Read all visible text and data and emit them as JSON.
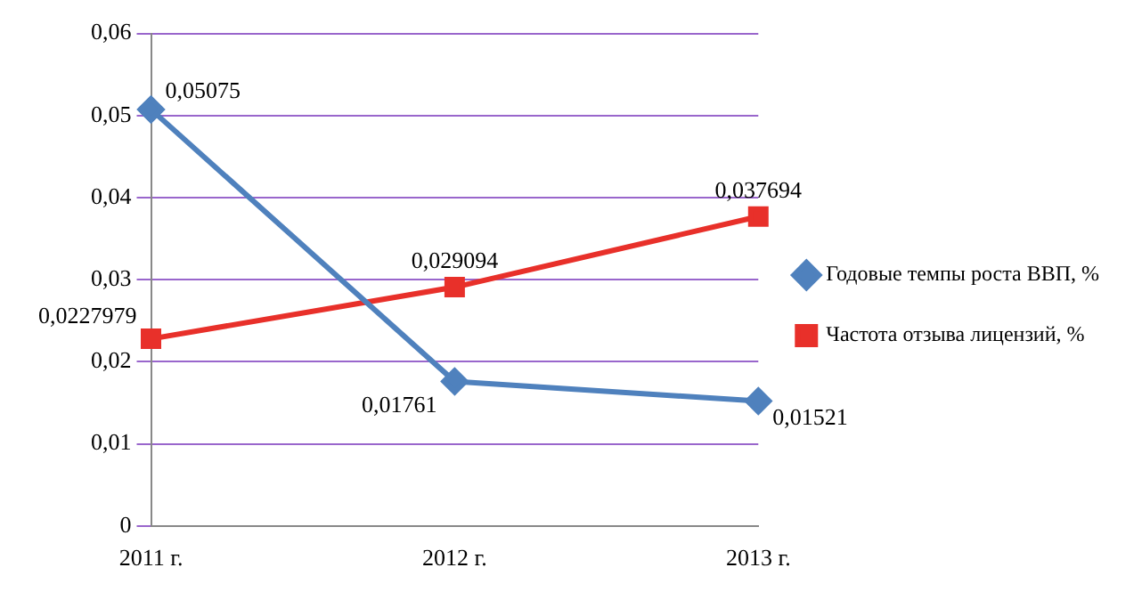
{
  "chart_data": {
    "type": "line",
    "categories": [
      "2011 г.",
      "2012 г.",
      "2013 г."
    ],
    "series": [
      {
        "name": "Годовые темпы роста ВВП, %",
        "color": "#4f81bd",
        "marker": "diamond",
        "values": [
          0.05075,
          0.01761,
          0.01521
        ],
        "value_labels": [
          "0,05075",
          "0,01761",
          "0,01521"
        ]
      },
      {
        "name": "Частота отзыва лицензий, %",
        "color": "#e8302a",
        "marker": "square",
        "values": [
          0.0227979,
          0.029094,
          0.037694
        ],
        "value_labels": [
          "0,0227979",
          "0,029094",
          "0,037694"
        ]
      }
    ],
    "ylim": [
      0,
      0.06
    ],
    "yticks": [
      0,
      {
        "value": 0.01,
        "label": "0,01"
      },
      {
        "value": 0.02,
        "label": "0,02"
      },
      {
        "value": 0.03,
        "label": "0,03"
      },
      {
        "value": 0.04,
        "label": "0,04"
      },
      {
        "value": 0.05,
        "label": "0,05"
      },
      {
        "value": 0.06,
        "label": "0,06"
      }
    ],
    "grid": "y",
    "legend": "right"
  }
}
